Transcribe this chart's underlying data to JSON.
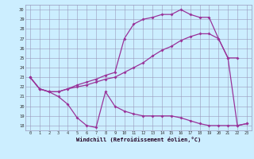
{
  "xlabel": "Windchill (Refroidissement éolien,°C)",
  "bg_color": "#cceeff",
  "grid_color": "#9999bb",
  "line_color": "#993399",
  "xlim": [
    -0.5,
    23.5
  ],
  "ylim": [
    17.5,
    30.5
  ],
  "xticks": [
    0,
    1,
    2,
    3,
    4,
    5,
    6,
    7,
    8,
    9,
    10,
    11,
    12,
    13,
    14,
    15,
    16,
    17,
    18,
    19,
    20,
    21,
    22,
    23
  ],
  "yticks": [
    18,
    19,
    20,
    21,
    22,
    23,
    24,
    25,
    26,
    27,
    28,
    29,
    30
  ],
  "curve1_x": [
    0,
    1,
    2,
    3,
    4,
    5,
    6,
    7,
    8,
    9,
    10,
    11,
    12,
    13,
    14,
    15,
    16,
    17,
    18,
    19,
    20,
    21,
    22,
    23
  ],
  "curve1_y": [
    23,
    21.8,
    21.5,
    21.0,
    20.2,
    18.8,
    18.0,
    17.8,
    21.5,
    20.0,
    19.5,
    19.2,
    19.0,
    19.0,
    19.0,
    19.0,
    18.8,
    18.5,
    18.2,
    18.0,
    18.0,
    18.0,
    18.0,
    18.2
  ],
  "curve2_x": [
    0,
    1,
    2,
    3,
    4,
    5,
    6,
    7,
    8,
    9,
    10,
    11,
    12,
    13,
    14,
    15,
    16,
    17,
    18,
    19,
    20,
    21,
    22
  ],
  "curve2_y": [
    23,
    21.8,
    21.5,
    21.5,
    21.8,
    22.0,
    22.2,
    22.5,
    22.8,
    23.0,
    23.5,
    24.0,
    24.5,
    25.2,
    25.8,
    26.2,
    26.8,
    27.2,
    27.5,
    27.5,
    27.0,
    25.0,
    25.0
  ],
  "curve3_x": [
    0,
    1,
    2,
    3,
    4,
    5,
    6,
    7,
    8,
    9,
    10,
    11,
    12,
    13,
    14,
    15,
    16,
    17,
    18,
    19,
    20,
    21,
    22,
    23
  ],
  "curve3_y": [
    23,
    21.8,
    21.5,
    21.5,
    21.8,
    22.2,
    22.5,
    22.8,
    23.2,
    23.5,
    27.0,
    28.5,
    29.0,
    29.2,
    29.5,
    29.5,
    30.0,
    29.5,
    29.2,
    29.2,
    27.0,
    25.0,
    18.0,
    18.2
  ]
}
